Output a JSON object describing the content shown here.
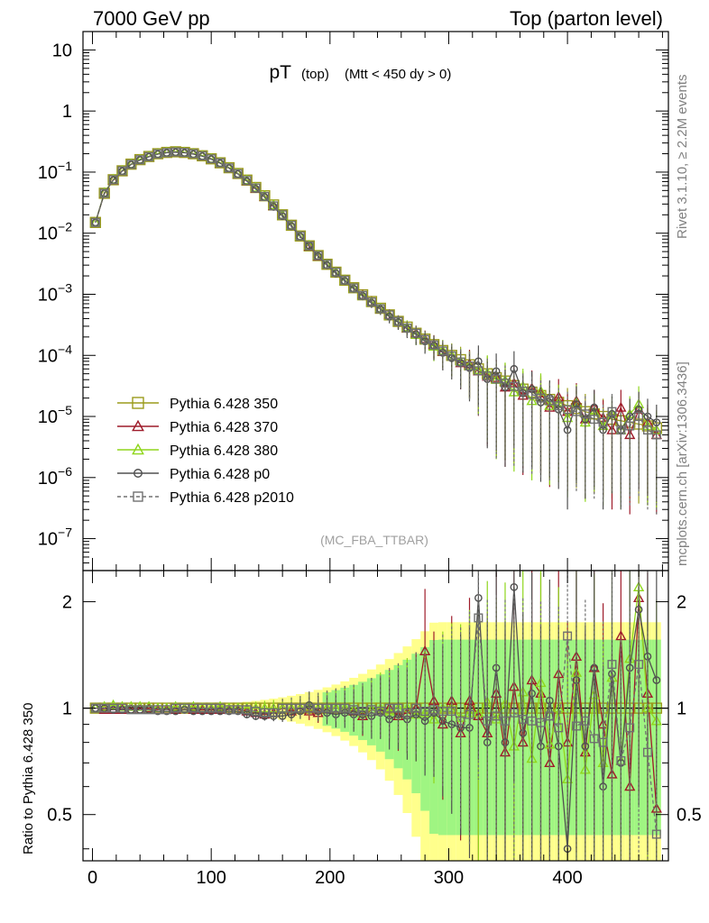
{
  "header": {
    "left": "7000 GeV pp",
    "right": "Top (parton level)"
  },
  "plot_title": {
    "main": "pT",
    "sub1": "(top)",
    "sub2": "(Mtt < 450 dy > 0)"
  },
  "side_text": {
    "rivet": "Rivet 3.1.10, ≥ 2.2M events",
    "mcplots": "mcplots.cern.ch [arXiv:1306.3436]"
  },
  "watermark": "(MC_FBA_TTBAR)",
  "ratio_ylabel": "Ratio to Pythia 6.428 350",
  "legend": [
    {
      "label": "Pythia 6.428 350",
      "color": "#9b9b1c",
      "marker": "square-open",
      "dashed": false
    },
    {
      "label": "Pythia 6.428 370",
      "color": "#9e1b2a",
      "marker": "triangle-open",
      "dashed": false
    },
    {
      "label": "Pythia 6.428 380",
      "color": "#8fd61c",
      "marker": "triangle-open",
      "dashed": false
    },
    {
      "label": "Pythia 6.428 p0",
      "color": "#505050",
      "marker": "circle-open",
      "dashed": false
    },
    {
      "label": "Pythia 6.428 p2010",
      "color": "#707070",
      "marker": "square-open",
      "dashed": true
    }
  ],
  "chart_data": [
    {
      "type": "line",
      "panel": "main",
      "yscale": "log",
      "xlim": [
        -8,
        485
      ],
      "ylim": [
        3e-08,
        20
      ],
      "x_ticks": [
        0,
        100,
        200,
        300,
        400
      ],
      "x_tick_labels": [
        "0",
        "100",
        "200",
        "300",
        "400"
      ],
      "y_ticks": [
        1e-07,
        1e-06,
        1e-05,
        0.0001,
        0.001,
        0.01,
        0.1,
        1,
        10
      ],
      "y_tick_labels": [
        {
          "base": "10",
          "exp": "−7"
        },
        {
          "base": "10",
          "exp": "−6"
        },
        {
          "base": "10",
          "exp": "−5"
        },
        {
          "base": "10",
          "exp": "−4"
        },
        {
          "base": "10",
          "exp": "−3"
        },
        {
          "base": "10",
          "exp": "−2"
        },
        {
          "base": "10",
          "exp": "−1"
        },
        {
          "base": "1",
          "exp": ""
        },
        {
          "base": "10",
          "exp": ""
        }
      ],
      "x": [
        2.5,
        10,
        17.5,
        25,
        32.5,
        40,
        47.5,
        55,
        62.5,
        70,
        77.5,
        85,
        92.5,
        100,
        107.5,
        115,
        122.5,
        130,
        137.5,
        145,
        152.5,
        160,
        167.5,
        175,
        182.5,
        190,
        197.5,
        205,
        212.5,
        220,
        227.5,
        235,
        242.5,
        250,
        257.5,
        265,
        272.5,
        280,
        287.5,
        295,
        302.5,
        310,
        317.5,
        325,
        332.5,
        340,
        347.5,
        355,
        362.5,
        370,
        377.5,
        385,
        392.5,
        400,
        407.5,
        415,
        422.5,
        430,
        437.5,
        445,
        452.5,
        460,
        467.5,
        475
      ],
      "series": [
        {
          "name": "Pythia 6.428 350",
          "values": [
            0.015,
            0.045,
            0.075,
            0.105,
            0.135,
            0.16,
            0.18,
            0.2,
            0.21,
            0.215,
            0.21,
            0.2,
            0.185,
            0.165,
            0.142,
            0.118,
            0.095,
            0.074,
            0.056,
            0.041,
            0.029,
            0.02,
            0.0135,
            0.009,
            0.0062,
            0.0043,
            0.0031,
            0.0023,
            0.0017,
            0.00128,
            0.00098,
            0.00076,
            0.00059,
            0.00046,
            0.00036,
            0.00029,
            0.00023,
            0.000185,
            0.00015,
            0.00012,
            0.0001,
            8.5e-05,
            7e-05,
            6e-05,
            5e-05,
            4.3e-05,
            3.8e-05,
            3.2e-05,
            2.8e-05,
            2.5e-05,
            2.2e-05,
            1.9e-05,
            1.7e-05,
            1.5e-05,
            1.35e-05,
            1.2e-05,
            1.1e-05,
            1e-05,
            9e-06,
            8.5e-06,
            8e-06,
            7.5e-06,
            7e-06,
            6.5e-06
          ]
        },
        {
          "name": "Pythia 6.428 370",
          "values": [
            0.015,
            0.045,
            0.074,
            0.104,
            0.134,
            0.159,
            0.18,
            0.199,
            0.209,
            0.214,
            0.209,
            0.199,
            0.184,
            0.164,
            0.141,
            0.117,
            0.094,
            0.072,
            0.054,
            0.04,
            0.028,
            0.02,
            0.0135,
            0.009,
            0.0061,
            0.0042,
            0.0031,
            0.0023,
            0.0017,
            0.00128,
            0.00097,
            0.00076,
            0.00058,
            0.00046,
            0.00036,
            0.00028,
            0.00023,
            0.000185,
            0.00015,
            0.000115,
            0.0001,
            7.5e-05,
            7.2e-05,
            5.5e-05,
            4.5e-05,
            4.3e-05,
            3e-05,
            3.5e-05,
            2.2e-05,
            2.9e-05,
            2.4e-05,
            1.4e-05,
            2.1e-05,
            1.2e-05,
            1.8e-05,
            9e-06,
            1.4e-05,
            9.5e-06,
            6e-06,
            1.4e-05,
            5e-06,
            1.3e-05,
            8e-06,
            5e-06
          ]
        },
        {
          "name": "Pythia 6.428 380",
          "values": [
            0.015,
            0.046,
            0.076,
            0.106,
            0.136,
            0.161,
            0.181,
            0.2,
            0.211,
            0.216,
            0.211,
            0.201,
            0.186,
            0.166,
            0.143,
            0.118,
            0.095,
            0.074,
            0.056,
            0.041,
            0.029,
            0.02,
            0.0135,
            0.009,
            0.0063,
            0.0043,
            0.0031,
            0.0023,
            0.0017,
            0.00127,
            0.00095,
            0.00075,
            0.00059,
            0.00045,
            0.00036,
            0.00029,
            0.00022,
            0.00018,
            0.00014,
            0.00012,
            0.0001,
            8e-05,
            6.8e-05,
            5.8e-05,
            5.2e-05,
            4e-05,
            3.9e-05,
            2.5e-05,
            3.1e-05,
            1.8e-05,
            2.6e-05,
            1.5e-05,
            1.7e-05,
            9.5e-06,
            1.7e-05,
            8e-06,
            1.2e-05,
            7e-06,
            1.1e-05,
            6e-06,
            1.1e-05,
            1.6e-05,
            7e-06,
            6e-06
          ]
        },
        {
          "name": "Pythia 6.428 p0",
          "values": [
            0.015,
            0.045,
            0.074,
            0.104,
            0.133,
            0.158,
            0.178,
            0.197,
            0.207,
            0.212,
            0.207,
            0.197,
            0.182,
            0.162,
            0.14,
            0.116,
            0.093,
            0.071,
            0.053,
            0.039,
            0.027,
            0.019,
            0.013,
            0.0088,
            0.0063,
            0.0042,
            0.003,
            0.0022,
            0.00165,
            0.00123,
            0.00094,
            0.00072,
            0.00057,
            0.00043,
            0.00035,
            0.00027,
            0.00022,
            0.00017,
            0.000145,
            0.00011,
            9e-05,
            7.5e-05,
            6.2e-05,
            8e-05,
            4.1e-05,
            5.5e-05,
            3e-05,
            6e-05,
            2.4e-05,
            2.8e-05,
            1.7e-05,
            2e-05,
            1.3e-05,
            6e-06,
            1.6e-05,
            9e-06,
            1.4e-05,
            6e-06,
            1.1e-05,
            6e-06,
            1e-05,
            1.3e-05,
            1e-05,
            8e-06
          ]
        },
        {
          "name": "Pythia 6.428 p2010",
          "values": [
            0.015,
            0.045,
            0.075,
            0.105,
            0.134,
            0.159,
            0.179,
            0.199,
            0.209,
            0.214,
            0.21,
            0.2,
            0.185,
            0.165,
            0.142,
            0.117,
            0.094,
            0.073,
            0.055,
            0.04,
            0.028,
            0.02,
            0.0135,
            0.009,
            0.0062,
            0.0043,
            0.0031,
            0.0023,
            0.0017,
            0.00127,
            0.00096,
            0.00075,
            0.00058,
            0.00046,
            0.00036,
            0.00028,
            0.00023,
            0.000182,
            0.000148,
            0.000118,
            9.8e-05,
            7.8e-05,
            6.7e-05,
            5.6e-05,
            4.6e-05,
            4.1e-05,
            3.5e-05,
            3.1e-05,
            2.6e-05,
            2.3e-05,
            2e-05,
            1.8e-05,
            1.5e-05,
            1.3e-05,
            1.2e-05,
            1.1e-05,
            9e-06,
            8e-06,
            1.2e-05,
            6e-06,
            7e-06,
            1e-05,
            6e-06,
            5e-06
          ]
        }
      ]
    },
    {
      "type": "line",
      "panel": "ratio",
      "yscale": "log",
      "xlim": [
        -8,
        485
      ],
      "ylim": [
        0.37,
        2.45
      ],
      "reference_line": 1,
      "x_ticks": [
        0,
        100,
        200,
        300,
        400
      ],
      "x_tick_labels": [
        "0",
        "100",
        "200",
        "300",
        "400"
      ],
      "y_ticks": [
        0.5,
        1,
        2
      ],
      "y_tick_labels": [
        "0.5",
        "1",
        "2"
      ],
      "band_colors": {
        "ref": "#ffff80",
        "second": "#7ff27f"
      },
      "x": [
        2.5,
        10,
        17.5,
        25,
        32.5,
        40,
        47.5,
        55,
        62.5,
        70,
        77.5,
        85,
        92.5,
        100,
        107.5,
        115,
        122.5,
        130,
        137.5,
        145,
        152.5,
        160,
        167.5,
        175,
        182.5,
        190,
        197.5,
        205,
        212.5,
        220,
        227.5,
        235,
        242.5,
        250,
        257.5,
        265,
        272.5,
        280,
        287.5,
        295,
        302.5,
        310,
        317.5,
        325,
        332.5,
        340,
        347.5,
        355,
        362.5,
        370,
        377.5,
        385,
        392.5,
        400,
        407.5,
        415,
        422.5,
        430,
        437.5,
        445,
        452.5,
        460,
        467.5,
        475
      ],
      "series": [
        {
          "name": "Pythia 6.428 370",
          "values": [
            1.0,
            0.99,
            0.99,
            0.99,
            0.99,
            0.99,
            1.0,
            0.99,
            0.99,
            0.99,
            1.0,
            0.99,
            0.99,
            0.99,
            0.99,
            0.99,
            0.99,
            0.98,
            0.97,
            0.96,
            0.97,
            1.0,
            0.98,
            1.0,
            0.98,
            0.97,
            1.0,
            1.0,
            1.0,
            0.98,
            0.95,
            0.99,
            0.98,
            1.0,
            0.95,
            0.97,
            1.0,
            1.45,
            1.05,
            0.9,
            1.05,
            0.85,
            1.05,
            0.95,
            0.85,
            1.1,
            0.75,
            1.15,
            0.8,
            1.2,
            1.1,
            0.7,
            1.25,
            0.8,
            1.4,
            0.75,
            1.3,
            0.9,
            0.65,
            1.6,
            0.6,
            2.05,
            1.1,
            0.52
          ]
        },
        {
          "name": "Pythia 6.428 380",
          "values": [
            1.0,
            1.01,
            1.02,
            1.01,
            1.01,
            1.01,
            1.01,
            1.0,
            1.0,
            1.01,
            1.0,
            1.01,
            1.0,
            1.0,
            1.01,
            1.0,
            1.0,
            1.0,
            1.0,
            1.0,
            1.0,
            1.0,
            1.0,
            1.0,
            1.01,
            1.0,
            1.0,
            1.0,
            1.0,
            0.99,
            0.97,
            0.99,
            1.0,
            0.98,
            1.0,
            1.0,
            0.96,
            0.97,
            0.93,
            1.0,
            1.0,
            0.94,
            0.97,
            0.97,
            1.04,
            0.93,
            1.03,
            0.78,
            1.11,
            0.72,
            1.18,
            0.79,
            1.0,
            0.63,
            1.26,
            0.67,
            1.09,
            0.7,
            1.22,
            0.71,
            1.38,
            2.2,
            1.0,
            0.92
          ]
        },
        {
          "name": "Pythia 6.428 p0",
          "values": [
            1.0,
            1.0,
            0.99,
            0.99,
            0.99,
            0.99,
            0.99,
            0.98,
            0.98,
            0.98,
            0.99,
            0.98,
            0.98,
            0.98,
            0.98,
            0.98,
            0.98,
            0.96,
            0.95,
            0.95,
            0.95,
            0.95,
            0.96,
            0.98,
            1.02,
            0.98,
            0.97,
            0.96,
            0.97,
            0.96,
            0.96,
            0.95,
            0.97,
            0.93,
            0.96,
            0.93,
            0.96,
            0.92,
            0.97,
            0.92,
            0.9,
            0.88,
            0.88,
            2.05,
            0.8,
            1.3,
            0.8,
            2.2,
            0.85,
            1.1,
            0.78,
            1.05,
            0.78,
            0.4,
            1.2,
            0.78,
            1.3,
            0.6,
            1.25,
            0.7,
            1.3,
            1.9,
            1.4,
            1.2
          ]
        },
        {
          "name": "Pythia 6.428 p2010",
          "values": [
            1.0,
            1.0,
            1.0,
            1.0,
            0.99,
            0.99,
            0.99,
            0.99,
            0.99,
            1.0,
            1.0,
            1.0,
            1.0,
            1.0,
            1.0,
            0.99,
            0.99,
            0.99,
            0.98,
            0.97,
            0.97,
            1.0,
            1.0,
            1.0,
            1.0,
            1.0,
            1.0,
            1.0,
            1.0,
            0.99,
            0.98,
            0.99,
            0.98,
            1.0,
            1.0,
            0.97,
            1.0,
            0.98,
            0.99,
            0.98,
            0.98,
            0.92,
            0.96,
            1.8,
            0.92,
            0.95,
            0.92,
            0.97,
            0.93,
            0.92,
            0.91,
            0.95,
            0.88,
            1.6,
            0.89,
            0.92,
            0.82,
            0.8,
            1.33,
            0.71,
            0.88,
            1.33,
            0.75,
            0.44
          ]
        }
      ]
    }
  ]
}
